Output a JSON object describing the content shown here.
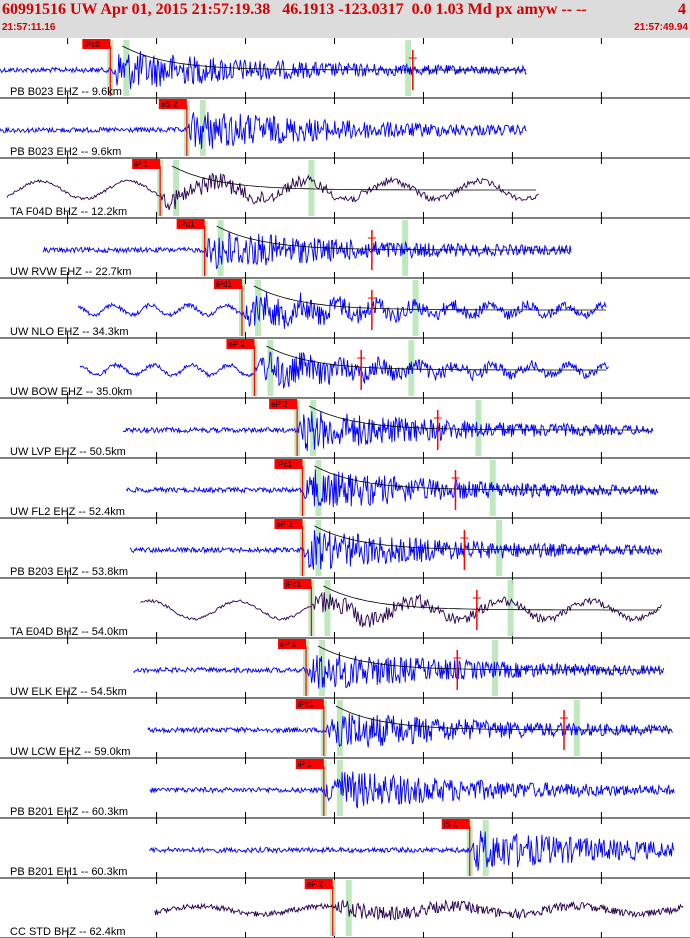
{
  "header": {
    "title": "60991516 UW Apr 01, 2015 21:57:19.38   46.1913 -123.0317  0.0 1.03 Md px amyw -- --",
    "count": "4",
    "start_time": "21:57:11.16",
    "end_time": "21:57:49.94"
  },
  "colors": {
    "header_bg": "#dcdcdc",
    "header_text": "#d40000",
    "trace_blue": "#0000ff",
    "trace_dark": "#2a0050",
    "pick_box": "#ff0000",
    "coda_line": "#000000",
    "coda_fit": "#d40000",
    "window_band": "#b8e6b8",
    "tick_marks": "#000000"
  },
  "chart_data": {
    "type": "line",
    "title": "",
    "time_start": "21:57:11.16",
    "time_end": "21:57:49.94",
    "time_unit": "seconds after 21:57:11.16",
    "x_range": [
      0,
      38.78
    ],
    "traces": [
      {
        "label": "PB B023 EHZ -- 9.6km",
        "color": "#0000ff",
        "pick": "iPc0",
        "pick_time": 6.2,
        "trace_start": 0.0,
        "trace_end": 29.6,
        "amp_mark": 23.2,
        "coda": true,
        "style": "hf"
      },
      {
        "label": "PB B023 EH2 -- 9.6km",
        "color": "#0000ff",
        "pick": "eS 2",
        "pick_time": 10.5,
        "trace_start": 0.0,
        "trace_end": 29.6,
        "coda": false,
        "style": "hf"
      },
      {
        "label": "TA F04D BHZ -- 12.2km",
        "color": "#2a0050",
        "pick": "iP 1",
        "pick_time": 9.0,
        "trace_start": 0.4,
        "trace_end": 30.3,
        "coda": true,
        "style": "lf"
      },
      {
        "label": "UW RVW EHZ -- 22.7km",
        "color": "#0000ff",
        "pick": "iPd1",
        "pick_time": 11.5,
        "trace_start": 2.4,
        "trace_end": 32.1,
        "amp_mark": 20.9,
        "coda": true,
        "style": "hf"
      },
      {
        "label": "UW NLO EHZ -- 34.3km",
        "color": "#0000ff",
        "pick": "iPd1",
        "pick_time": 13.6,
        "trace_start": 4.4,
        "trace_end": 34.1,
        "amp_mark": 20.9,
        "coda": true,
        "style": "mf"
      },
      {
        "label": "UW BOW EHZ -- 35.0km",
        "color": "#0000ff",
        "pick": "eP 2",
        "pick_time": 14.3,
        "trace_start": 4.5,
        "trace_end": 34.2,
        "amp_mark": 20.3,
        "coda": true,
        "style": "mf"
      },
      {
        "label": "UW LVP EHZ -- 50.5km",
        "color": "#0000ff",
        "pick": "eP 2",
        "pick_time": 16.7,
        "trace_start": 6.9,
        "trace_end": 36.7,
        "amp_mark": 24.6,
        "coda": true,
        "style": "hf"
      },
      {
        "label": "UW FL2 EHZ -- 52.4km",
        "color": "#0000ff",
        "pick": "iPc1",
        "pick_time": 17.0,
        "trace_start": 7.1,
        "trace_end": 37.0,
        "amp_mark": 25.6,
        "coda": true,
        "style": "hf"
      },
      {
        "label": "PB B203 EHZ -- 53.8km",
        "color": "#0000ff",
        "pick": "eP 2",
        "pick_time": 17.0,
        "trace_start": 7.3,
        "trace_end": 37.2,
        "amp_mark": 26.1,
        "coda": true,
        "style": "hf"
      },
      {
        "label": "TA E04D BHZ -- 54.0km",
        "color": "#2a0050",
        "pick": "iPc1",
        "pick_time": 17.5,
        "trace_start": 7.9,
        "trace_end": 37.2,
        "amp_mark": 26.8,
        "coda": true,
        "style": "lf"
      },
      {
        "label": "UW ELK EHZ -- 54.5km",
        "color": "#0000ff",
        "pick": "eP 2",
        "pick_time": 17.2,
        "trace_start": 7.5,
        "trace_end": 37.3,
        "amp_mark": 25.7,
        "coda": true,
        "style": "hf"
      },
      {
        "label": "UW LCW EHZ -- 59.0km",
        "color": "#0000ff",
        "pick": "iPc1",
        "pick_time": 18.2,
        "trace_start": 8.3,
        "trace_end": 37.8,
        "amp_mark": 31.7,
        "coda": true,
        "style": "hf"
      },
      {
        "label": "PB B201 EHZ -- 60.3km",
        "color": "#0000ff",
        "pick": "iP 1",
        "pick_time": 18.2,
        "trace_start": 8.4,
        "trace_end": 37.9,
        "coda": false,
        "style": "hf"
      },
      {
        "label": "PB B201 EH1 -- 60.3km",
        "color": "#0000ff",
        "pick": "iS 1",
        "pick_time": 26.4,
        "trace_start": 8.4,
        "trace_end": 37.9,
        "coda": false,
        "style": "hf"
      },
      {
        "label": "CC STD BHZ -- 62.4km",
        "color": "#2a0050",
        "pick": "eP 2",
        "pick_time": 18.7,
        "trace_start": 8.7,
        "trace_end": 38.4,
        "coda": false,
        "style": "dark"
      }
    ]
  }
}
